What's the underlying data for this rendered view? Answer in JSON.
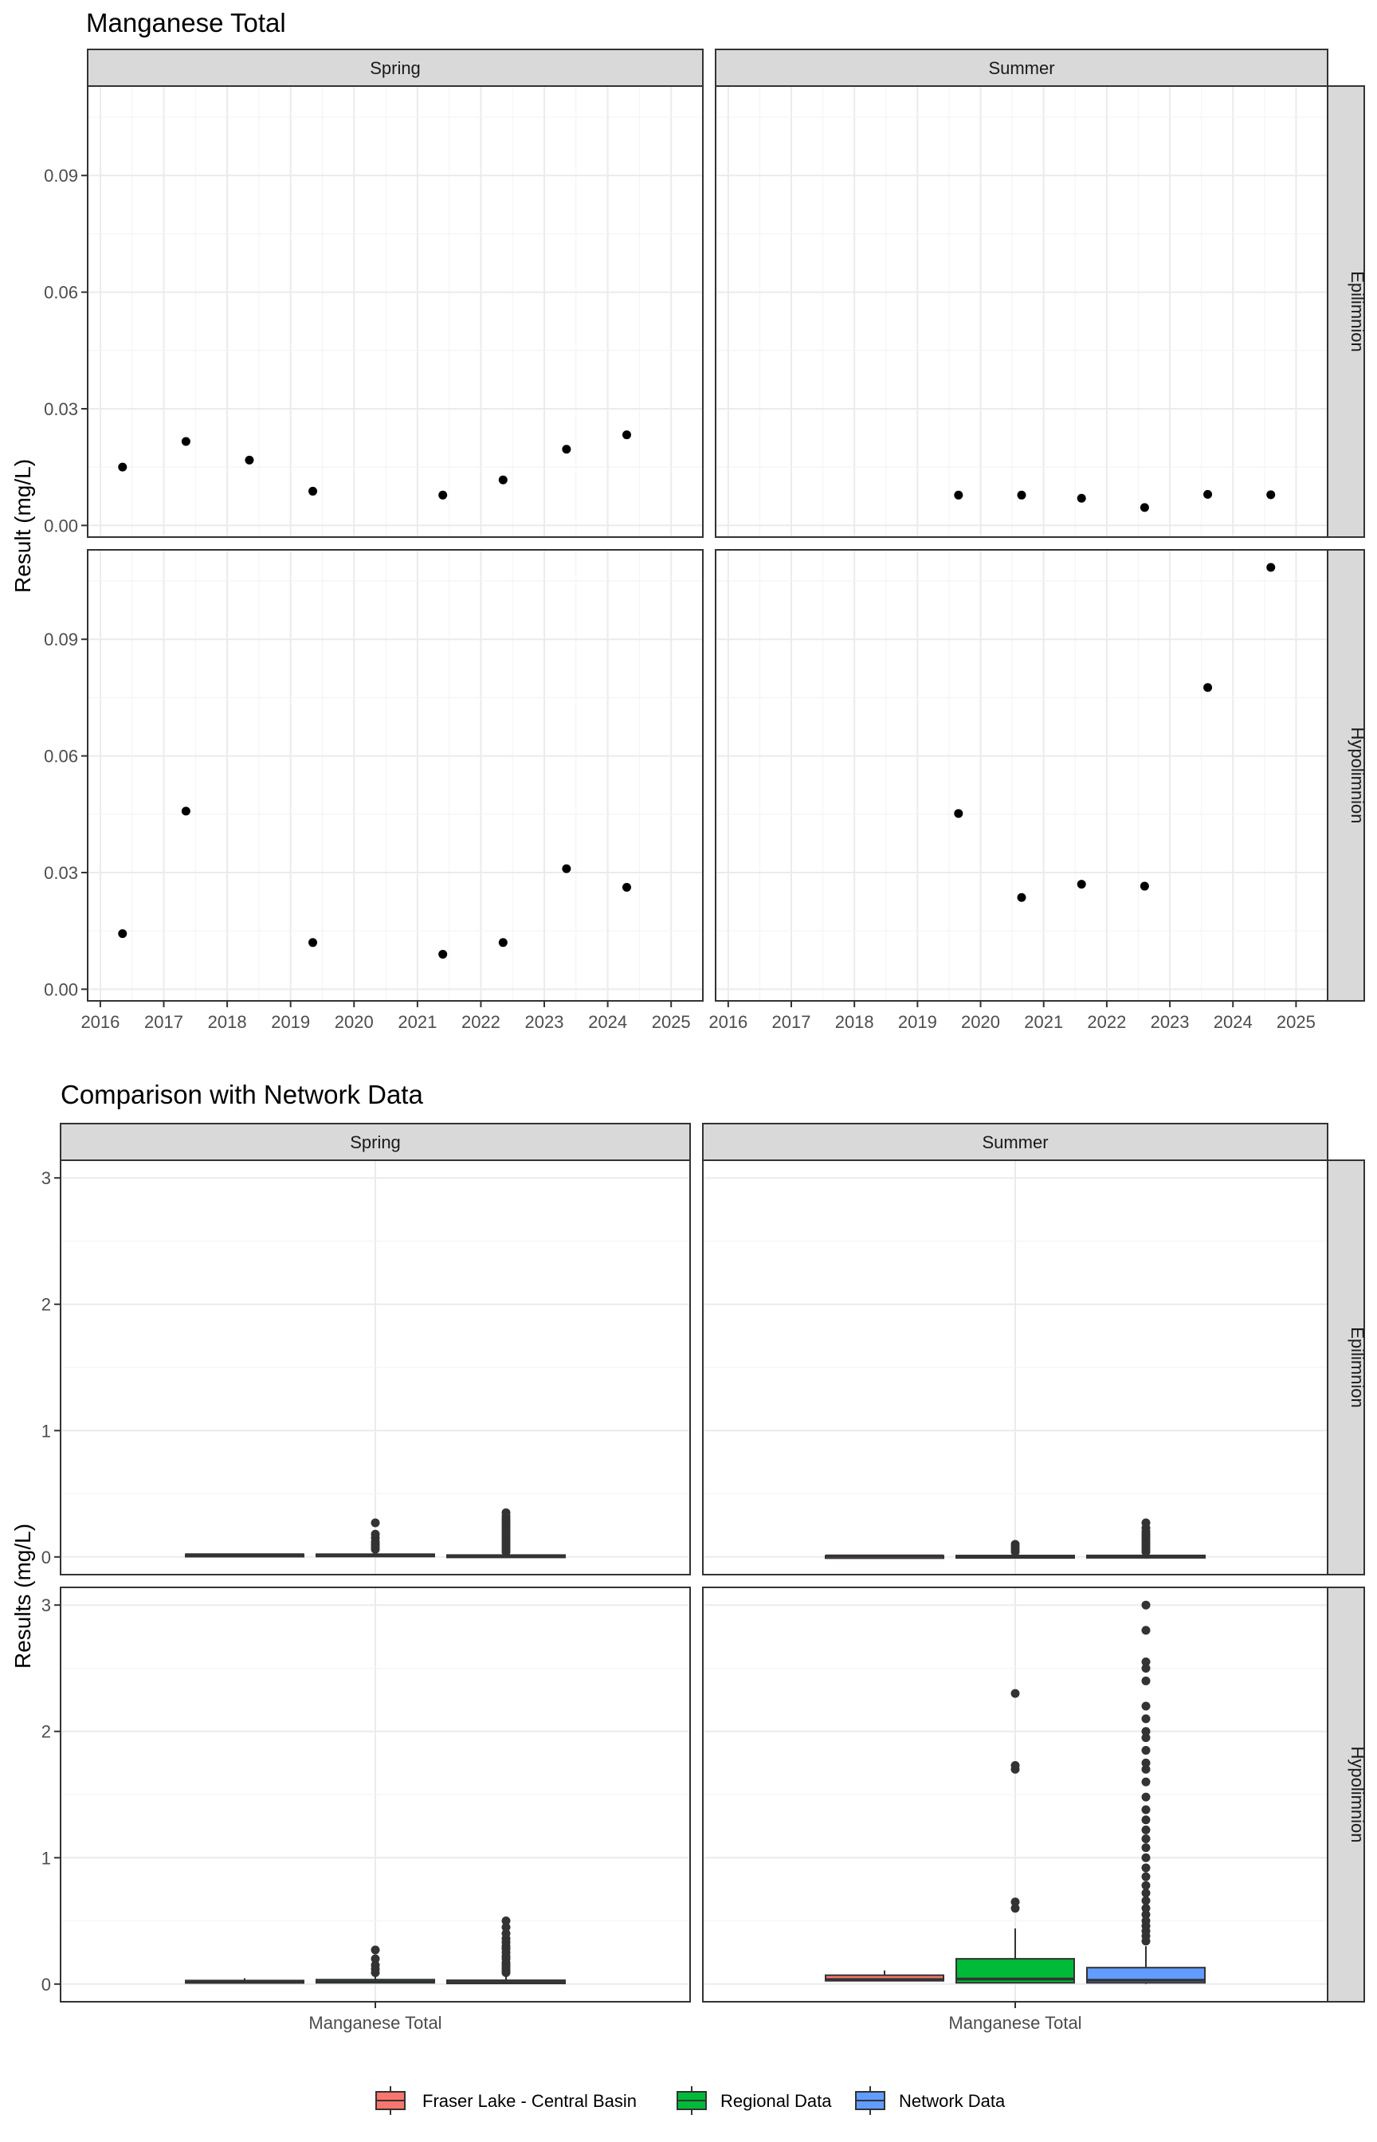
{
  "chart_data": [
    {
      "type": "scatter",
      "title": "Manganese Total",
      "ylabel": "Result (mg/L)",
      "xlabel": "",
      "xlim": [
        2015.8,
        2025.5
      ],
      "ylim": [
        -0.003,
        0.113
      ],
      "x_ticks": [
        "2016",
        "2017",
        "2018",
        "2019",
        "2020",
        "2021",
        "2022",
        "2023",
        "2024",
        "2025"
      ],
      "y_ticks": [
        "0.00",
        "0.03",
        "0.06",
        "0.09"
      ],
      "col_facets": [
        "Spring",
        "Summer"
      ],
      "row_facets": [
        "Epilimnion",
        "Hypolimnion"
      ],
      "grid": true,
      "panels": [
        {
          "col": "Spring",
          "row": "Epilimnion",
          "points": [
            [
              2016.35,
              0.015
            ],
            [
              2017.35,
              0.0216
            ],
            [
              2018.35,
              0.0168
            ],
            [
              2019.35,
              0.0088
            ],
            [
              2021.4,
              0.0078
            ],
            [
              2022.35,
              0.0117
            ],
            [
              2023.35,
              0.0196
            ],
            [
              2024.3,
              0.0233
            ]
          ]
        },
        {
          "col": "Summer",
          "row": "Epilimnion",
          "points": [
            [
              2019.65,
              0.0078
            ],
            [
              2020.65,
              0.0078
            ],
            [
              2021.6,
              0.007
            ],
            [
              2022.6,
              0.0046
            ],
            [
              2023.6,
              0.008
            ],
            [
              2024.6,
              0.0079
            ]
          ]
        },
        {
          "col": "Spring",
          "row": "Hypolimnion",
          "points": [
            [
              2016.35,
              0.0143
            ],
            [
              2017.35,
              0.0458
            ],
            [
              2019.35,
              0.012
            ],
            [
              2021.4,
              0.009
            ],
            [
              2022.35,
              0.012
            ],
            [
              2023.35,
              0.031
            ],
            [
              2024.3,
              0.0262
            ]
          ]
        },
        {
          "col": "Summer",
          "row": "Hypolimnion",
          "points": [
            [
              2019.65,
              0.0452
            ],
            [
              2020.65,
              0.0236
            ],
            [
              2021.6,
              0.027
            ],
            [
              2022.6,
              0.0265
            ],
            [
              2023.6,
              0.0776
            ],
            [
              2024.6,
              0.1085
            ]
          ]
        }
      ]
    },
    {
      "type": "box",
      "title": "Comparison with Network Data",
      "ylabel": "Results (mg/L)",
      "xlabel": "",
      "category": "Manganese Total",
      "ylim": [
        -0.14,
        3.14
      ],
      "y_ticks": [
        "0",
        "1",
        "2",
        "3"
      ],
      "col_facets": [
        "Spring",
        "Summer"
      ],
      "row_facets": [
        "Epilimnion",
        "Hypolimnion"
      ],
      "grid": true,
      "legend_position": "bottom",
      "series": [
        {
          "name": "Fraser Lake - Central Basin",
          "color": "#F8766D"
        },
        {
          "name": "Regional Data",
          "color": "#00BA38"
        },
        {
          "name": "Network Data",
          "color": "#619CFF"
        }
      ],
      "panels": [
        {
          "col": "Spring",
          "row": "Epilimnion",
          "boxes": [
            {
              "series": "Fraser Lake - Central Basin",
              "min": 0.012,
              "q1": 0.015,
              "median": 0.018,
              "q3": 0.021,
              "max": 0.025,
              "outliers": []
            },
            {
              "series": "Regional Data",
              "min": 0.004,
              "q1": 0.008,
              "median": 0.012,
              "q3": 0.022,
              "max": 0.045,
              "outliers": [
                0.06,
                0.08,
                0.1,
                0.12,
                0.15,
                0.18,
                0.27
              ]
            },
            {
              "series": "Network Data",
              "min": 0.001,
              "q1": 0.004,
              "median": 0.008,
              "q3": 0.015,
              "max": 0.028,
              "outliers": [
                0.04,
                0.06,
                0.08,
                0.1,
                0.12,
                0.14,
                0.16,
                0.18,
                0.2,
                0.22,
                0.24,
                0.26,
                0.28,
                0.3,
                0.32,
                0.35
              ]
            }
          ]
        },
        {
          "col": "Summer",
          "row": "Epilimnion",
          "boxes": [
            {
              "series": "Fraser Lake - Central Basin",
              "min": 0.005,
              "q1": 0.007,
              "median": 0.008,
              "q3": 0.009,
              "max": 0.01,
              "outliers": []
            },
            {
              "series": "Regional Data",
              "min": 0.002,
              "q1": 0.004,
              "median": 0.007,
              "q3": 0.011,
              "max": 0.02,
              "outliers": [
                0.04,
                0.06,
                0.08,
                0.1
              ]
            },
            {
              "series": "Network Data",
              "min": 0.001,
              "q1": 0.003,
              "median": 0.006,
              "q3": 0.012,
              "max": 0.022,
              "outliers": [
                0.04,
                0.06,
                0.08,
                0.1,
                0.12,
                0.14,
                0.16,
                0.18,
                0.2,
                0.23,
                0.27
              ]
            }
          ]
        },
        {
          "col": "Spring",
          "row": "Hypolimnion",
          "boxes": [
            {
              "series": "Fraser Lake - Central Basin",
              "min": 0.009,
              "q1": 0.012,
              "median": 0.014,
              "q3": 0.028,
              "max": 0.046,
              "outliers": []
            },
            {
              "series": "Regional Data",
              "min": 0.005,
              "q1": 0.01,
              "median": 0.018,
              "q3": 0.035,
              "max": 0.07,
              "outliers": [
                0.09,
                0.12,
                0.15,
                0.2,
                0.27
              ]
            },
            {
              "series": "Network Data",
              "min": 0.001,
              "q1": 0.005,
              "median": 0.012,
              "q3": 0.03,
              "max": 0.07,
              "outliers": [
                0.09,
                0.11,
                0.13,
                0.15,
                0.17,
                0.2,
                0.22,
                0.25,
                0.28,
                0.3,
                0.33,
                0.36,
                0.4,
                0.45,
                0.5
              ]
            }
          ]
        },
        {
          "col": "Summer",
          "row": "Hypolimnion",
          "boxes": [
            {
              "series": "Fraser Lake - Central Basin",
              "min": 0.024,
              "q1": 0.026,
              "median": 0.036,
              "q3": 0.07,
              "max": 0.108,
              "outliers": []
            },
            {
              "series": "Regional Data",
              "min": 0.005,
              "q1": 0.01,
              "median": 0.04,
              "q3": 0.2,
              "max": 0.44,
              "outliers": [
                0.6,
                0.65,
                1.7,
                1.73,
                2.3
              ]
            },
            {
              "series": "Network Data",
              "min": 0.001,
              "q1": 0.01,
              "median": 0.03,
              "q3": 0.13,
              "max": 0.3,
              "outliers": [
                0.34,
                0.38,
                0.42,
                0.46,
                0.5,
                0.55,
                0.6,
                0.66,
                0.72,
                0.78,
                0.85,
                0.92,
                1.0,
                1.08,
                1.15,
                1.22,
                1.3,
                1.38,
                1.48,
                1.6,
                1.7,
                1.75,
                1.85,
                1.95,
                2.0,
                2.1,
                2.2,
                2.4,
                2.5,
                2.55,
                2.8,
                3.0
              ]
            }
          ]
        }
      ]
    }
  ]
}
